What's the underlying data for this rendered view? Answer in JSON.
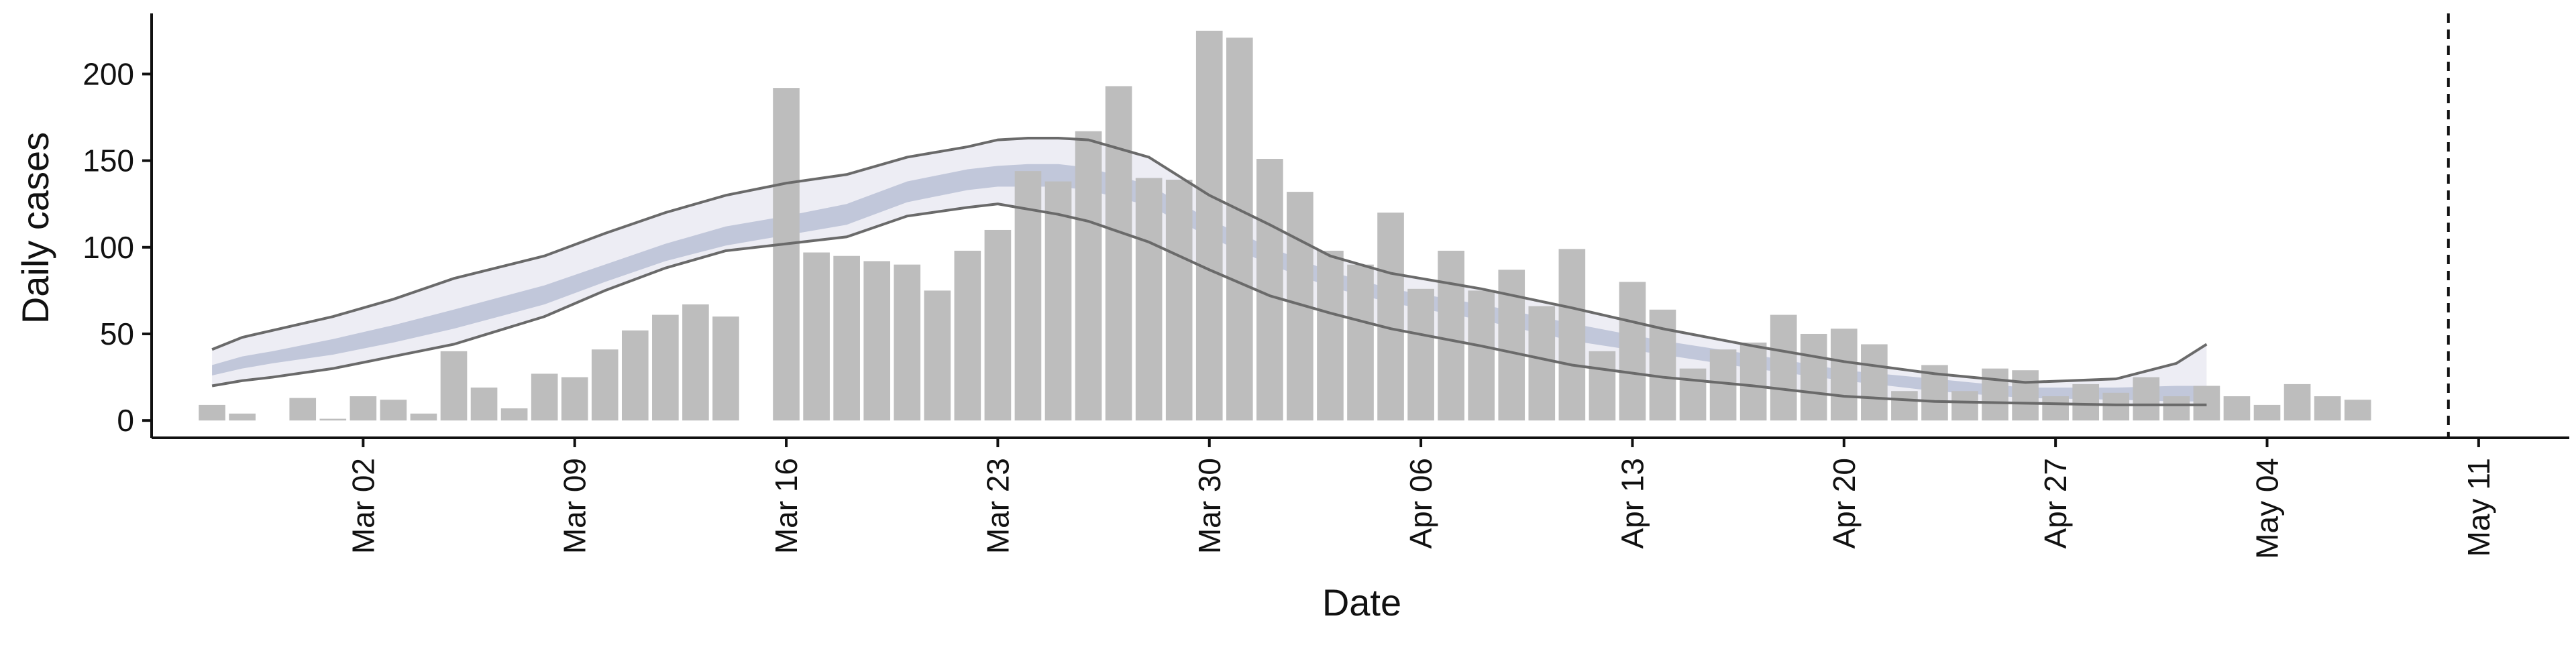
{
  "chart_data": {
    "type": "bar",
    "xlabel": "Date",
    "ylabel": "Daily cases",
    "x_ticks": [
      "Mar 02",
      "Mar 09",
      "Mar 16",
      "Mar 23",
      "Mar 30",
      "Apr 06",
      "Apr 13",
      "Apr 20",
      "Apr 27",
      "May 04",
      "May 11"
    ],
    "y_ticks": [
      0,
      50,
      100,
      150,
      200
    ],
    "xlim": [
      "2020-02-24",
      "2020-05-14"
    ],
    "ylim": [
      -10,
      235
    ],
    "grid": false,
    "legend": "none",
    "x": [
      "2020-02-26",
      "2020-02-27",
      "2020-02-28",
      "2020-02-29",
      "2020-03-01",
      "2020-03-02",
      "2020-03-03",
      "2020-03-04",
      "2020-03-05",
      "2020-03-06",
      "2020-03-07",
      "2020-03-08",
      "2020-03-09",
      "2020-03-10",
      "2020-03-11",
      "2020-03-12",
      "2020-03-13",
      "2020-03-14",
      "2020-03-15",
      "2020-03-16",
      "2020-03-17",
      "2020-03-18",
      "2020-03-19",
      "2020-03-20",
      "2020-03-21",
      "2020-03-22",
      "2020-03-23",
      "2020-03-24",
      "2020-03-25",
      "2020-03-26",
      "2020-03-27",
      "2020-03-28",
      "2020-03-29",
      "2020-03-30",
      "2020-03-31",
      "2020-04-01",
      "2020-04-02",
      "2020-04-03",
      "2020-04-04",
      "2020-04-05",
      "2020-04-06",
      "2020-04-07",
      "2020-04-08",
      "2020-04-09",
      "2020-04-10",
      "2020-04-11",
      "2020-04-12",
      "2020-04-13",
      "2020-04-14",
      "2020-04-15",
      "2020-04-16",
      "2020-04-17",
      "2020-04-18",
      "2020-04-19",
      "2020-04-20",
      "2020-04-21",
      "2020-04-22",
      "2020-04-23",
      "2020-04-24",
      "2020-04-25",
      "2020-04-26",
      "2020-04-27",
      "2020-04-28",
      "2020-04-29",
      "2020-04-30",
      "2020-05-01",
      "2020-05-02",
      "2020-05-03",
      "2020-05-04",
      "2020-05-05",
      "2020-05-06",
      "2020-05-07",
      "2020-05-08",
      "2020-05-09",
      "2020-05-10"
    ],
    "daily_cases": [
      9,
      4,
      0,
      13,
      1,
      14,
      12,
      4,
      40,
      19,
      7,
      27,
      25,
      41,
      52,
      61,
      67,
      60,
      0,
      192,
      97,
      95,
      92,
      90,
      75,
      98,
      110,
      144,
      138,
      167,
      193,
      140,
      139,
      225,
      221,
      151,
      132,
      98,
      90,
      120,
      76,
      98,
      75,
      87,
      66,
      99,
      40,
      80,
      64,
      30,
      41,
      45,
      61,
      50,
      53,
      44,
      17,
      32,
      17,
      30,
      29,
      14,
      21,
      16,
      25,
      14,
      20,
      14,
      9,
      21,
      14,
      12,
      0,
      0,
      0
    ],
    "estimate_dates": [
      "2020-02-26",
      "2020-02-27",
      "2020-02-28",
      "2020-03-01",
      "2020-03-03",
      "2020-03-05",
      "2020-03-08",
      "2020-03-10",
      "2020-03-12",
      "2020-03-14",
      "2020-03-16",
      "2020-03-18",
      "2020-03-20",
      "2020-03-22",
      "2020-03-23",
      "2020-03-24",
      "2020-03-25",
      "2020-03-26",
      "2020-03-28",
      "2020-03-30",
      "2020-04-01",
      "2020-04-03",
      "2020-04-05",
      "2020-04-08",
      "2020-04-11",
      "2020-04-14",
      "2020-04-17",
      "2020-04-20",
      "2020-04-23",
      "2020-04-26",
      "2020-04-29",
      "2020-05-01",
      "2020-05-02"
    ],
    "outer_band_upper": [
      41,
      48,
      52,
      60,
      70,
      82,
      95,
      108,
      120,
      130,
      137,
      142,
      152,
      158,
      162,
      163,
      163,
      162,
      152,
      130,
      113,
      95,
      85,
      76,
      65,
      53,
      43,
      34,
      27,
      22,
      24,
      33,
      44
    ],
    "outer_band_lower": [
      20,
      23,
      25,
      30,
      37,
      44,
      60,
      75,
      88,
      98,
      102,
      106,
      118,
      123,
      125,
      122,
      119,
      115,
      103,
      87,
      72,
      62,
      53,
      43,
      32,
      25,
      20,
      14,
      11,
      10,
      9,
      9,
      9
    ],
    "inner_band_upper": [
      32,
      37,
      40,
      47,
      55,
      64,
      78,
      90,
      102,
      112,
      118,
      125,
      138,
      145,
      147,
      148,
      148,
      146,
      136,
      116,
      100,
      86,
      76,
      67,
      56,
      46,
      38,
      29,
      24,
      19,
      19,
      20,
      20
    ],
    "inner_band_lower": [
      26,
      30,
      33,
      38,
      45,
      53,
      67,
      80,
      92,
      101,
      107,
      113,
      126,
      133,
      135,
      135,
      135,
      133,
      124,
      106,
      90,
      77,
      68,
      58,
      46,
      38,
      30,
      23,
      17,
      13,
      12,
      11,
      11
    ],
    "vline_date": "2020-05-10",
    "colors": {
      "bars": "#bdbdbd",
      "outer_band": "#e8e9f1",
      "inner_band": "#b5bdd3",
      "band_lines": "#6a6a6a",
      "axes": "#111111",
      "vline": "#111111"
    }
  }
}
